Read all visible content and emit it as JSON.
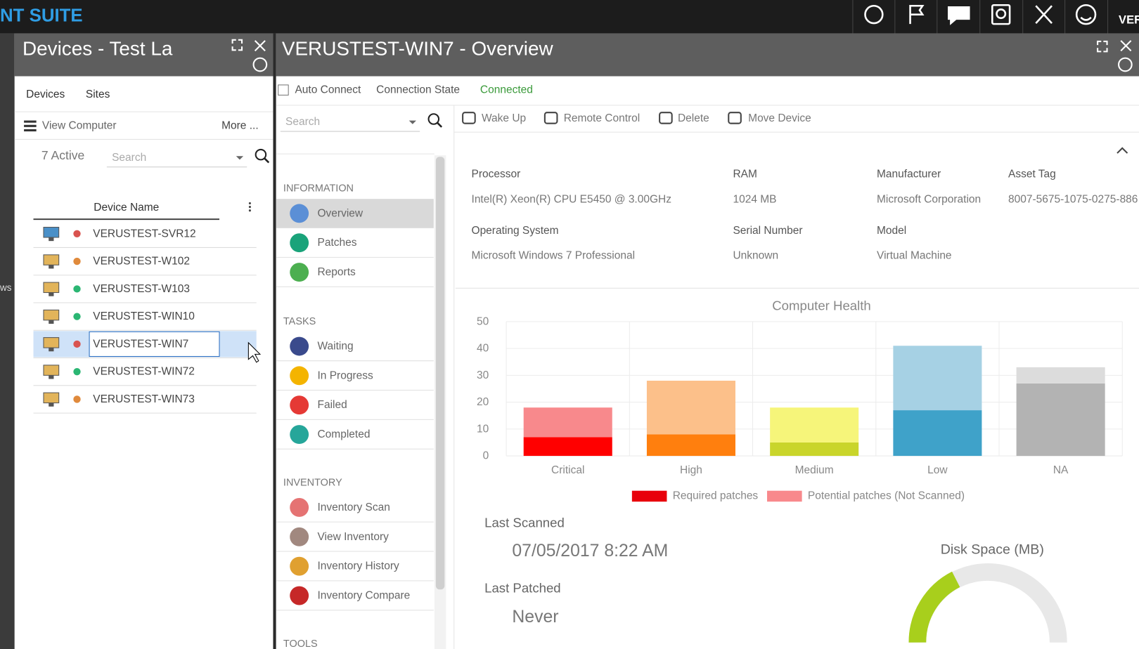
{
  "top_bar": {
    "brand": "NT SUITE",
    "user": "VER"
  },
  "left_edge_text": "ws",
  "devices_panel": {
    "title": "Devices - Test La",
    "tabs": [
      "Devices",
      "Sites"
    ],
    "view_computer": "View Computer",
    "more": "More ...",
    "active": "7 Active",
    "search": "Search",
    "column": "Device Name",
    "devices": [
      {
        "name": "VERUSTEST-SVR12",
        "status_color": "#d9534f",
        "icon_color": "#4a90c8"
      },
      {
        "name": "VERUSTEST-W102",
        "status_color": "#e08a3c",
        "icon_color": "#e2b45a"
      },
      {
        "name": "VERUSTEST-W103",
        "status_color": "#2bb673",
        "icon_color": "#e2b45a"
      },
      {
        "name": "VERUSTEST-WIN10",
        "status_color": "#2bb673",
        "icon_color": "#e2b45a"
      },
      {
        "name": "VERUSTEST-WIN7",
        "status_color": "#d9534f",
        "icon_color": "#e2b45a",
        "selected": true
      },
      {
        "name": "VERUSTEST-WIN72",
        "status_color": "#2bb673",
        "icon_color": "#e2b45a"
      },
      {
        "name": "VERUSTEST-WIN73",
        "status_color": "#e08a3c",
        "icon_color": "#e2b45a"
      }
    ]
  },
  "overview_panel": {
    "title": "VERUSTEST-WIN7 - Overview",
    "auto_connect": "Auto Connect",
    "connection_state": "Connection State",
    "connected": "Connected",
    "search": "Search",
    "menu": [
      {
        "heading": "INFORMATION",
        "items": [
          "Overview",
          "Patches",
          "Reports"
        ]
      },
      {
        "heading": "TASKS",
        "items": [
          "Waiting",
          "In Progress",
          "Failed",
          "Completed"
        ]
      },
      {
        "heading": "INVENTORY",
        "items": [
          "Inventory Scan",
          "View Inventory",
          "Inventory History",
          "Inventory Compare"
        ]
      },
      {
        "heading": "TOOLS",
        "items": []
      }
    ],
    "toolbar": [
      "Wake Up",
      "Remote Control",
      "Delete",
      "Move Device"
    ],
    "info": [
      {
        "label": "Processor",
        "value": "Intel(R) Xeon(R) CPU E5450 @ 3.00GHz"
      },
      {
        "label": "RAM",
        "value": "1024 MB"
      },
      {
        "label": "Manufacturer",
        "value": "Microsoft Corporation"
      },
      {
        "label": "Asset Tag",
        "value": "8007-5675-1075-0275-886"
      },
      {
        "label": "Operating System",
        "value": "Microsoft Windows 7 Professional"
      },
      {
        "label": "Serial Number",
        "value": "Unknown"
      },
      {
        "label": "Model",
        "value": "Virtual Machine"
      }
    ],
    "last_scanned_label": "Last Scanned",
    "last_scanned": "07/05/2017 8:22 AM",
    "last_patched_label": "Last Patched",
    "last_patched": "Never",
    "disk_space_title": "Disk Space (MB)"
  },
  "chart_data": {
    "type": "bar",
    "stacked": true,
    "title": "Computer Health",
    "categories": [
      "Critical",
      "High",
      "Medium",
      "Low",
      "NA"
    ],
    "series": [
      {
        "name": "Required patches",
        "color": "#e8000b",
        "colors": [
          "#ff0000",
          "#ff7f0e",
          "#c9d52b",
          "#3fa2c9",
          "#b3b3b3"
        ],
        "values": [
          7,
          8,
          5,
          17,
          27
        ]
      },
      {
        "name": "Potential patches (Not Scanned)",
        "color": "#f8898c",
        "colors": [
          "#f8898c",
          "#fcc08a",
          "#f6f57a",
          "#a6d1e4",
          "#dcdcdc"
        ],
        "values": [
          11,
          20,
          13,
          24,
          6
        ]
      }
    ],
    "ylim": [
      0,
      50
    ],
    "yticks": [
      0,
      10,
      20,
      30,
      40,
      50
    ],
    "grid": true
  }
}
